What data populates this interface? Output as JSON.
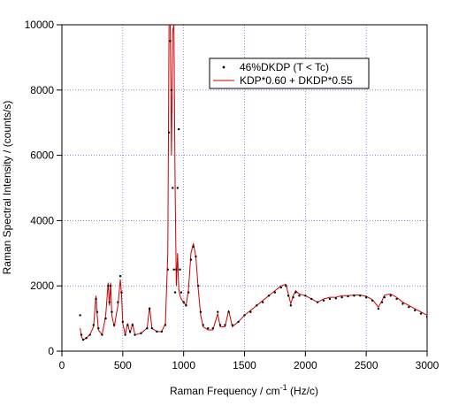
{
  "chart_data": {
    "type": "scatter",
    "x_label": {
      "text": "Raman Frequency / cm",
      "superscript": "-1",
      "suffix": " (Hz/c)"
    },
    "y_label": "Raman Spectral Intensity / (counts/s)",
    "xlim": [
      0,
      3000
    ],
    "ylim": [
      0,
      10000
    ],
    "xticks": [
      0,
      500,
      1000,
      1500,
      2000,
      2500,
      3000
    ],
    "yticks": [
      0,
      2000,
      4000,
      6000,
      8000,
      10000
    ],
    "grid": true,
    "legend": "upper right",
    "x": [
      150,
      160,
      175,
      200,
      230,
      260,
      280,
      290,
      300,
      330,
      360,
      380,
      390,
      400,
      410,
      430,
      460,
      480,
      490,
      500,
      520,
      540,
      560,
      580,
      600,
      650,
      700,
      720,
      740,
      780,
      820,
      850,
      870,
      880,
      890,
      900,
      910,
      920,
      930,
      940,
      950,
      960,
      970,
      980,
      1000,
      1020,
      1040,
      1060,
      1080,
      1100,
      1120,
      1140,
      1160,
      1200,
      1240,
      1280,
      1300,
      1340,
      1370,
      1400,
      1450,
      1500,
      1550,
      1600,
      1650,
      1700,
      1750,
      1800,
      1840,
      1860,
      1880,
      1900,
      1920,
      1950,
      2000,
      2050,
      2100,
      2150,
      2200,
      2250,
      2300,
      2350,
      2400,
      2450,
      2500,
      2550,
      2600,
      2630,
      2650,
      2700,
      2750,
      2800,
      2850,
      2900,
      2950,
      3000
    ],
    "series": [
      {
        "name": "46%DKDP  (T < Tc)",
        "mode": "markers",
        "color": "#000000",
        "values": [
          1100,
          500,
          350,
          400,
          500,
          800,
          1600,
          1200,
          700,
          500,
          1000,
          2000,
          1500,
          2000,
          1200,
          800,
          1500,
          2300,
          1800,
          900,
          500,
          800,
          600,
          800,
          500,
          550,
          700,
          1300,
          700,
          600,
          600,
          800,
          2500,
          6700,
          9500,
          8000,
          5000,
          2500,
          1800,
          2500,
          5000,
          6800,
          2500,
          1800,
          1500,
          1400,
          1800,
          2800,
          3200,
          2900,
          2000,
          1200,
          800,
          700,
          700,
          1200,
          800,
          800,
          1200,
          800,
          900,
          1100,
          1200,
          1400,
          1500,
          1700,
          1800,
          1950,
          2000,
          1700,
          1400,
          1650,
          1800,
          1700,
          1700,
          1600,
          1500,
          1550,
          1600,
          1620,
          1650,
          1680,
          1700,
          1700,
          1650,
          1550,
          1300,
          1500,
          1650,
          1700,
          1600,
          1450,
          1350,
          1250,
          1150,
          1050
        ]
      },
      {
        "name": "KDP*0.60 + DKDP*0.55",
        "mode": "line",
        "color": "#cc0000",
        "values": [
          700,
          450,
          350,
          400,
          500,
          750,
          1700,
          1100,
          650,
          500,
          1100,
          2100,
          1400,
          2100,
          1100,
          750,
          1400,
          2200,
          1700,
          850,
          500,
          850,
          550,
          850,
          500,
          550,
          700,
          1350,
          700,
          600,
          600,
          850,
          3000,
          10000,
          10000,
          6000,
          9800,
          10000,
          5000,
          2000,
          3000,
          1900,
          1700,
          1600,
          1500,
          1400,
          1900,
          3000,
          3300,
          2900,
          1900,
          1100,
          750,
          650,
          650,
          1150,
          750,
          750,
          1250,
          750,
          900,
          1100,
          1250,
          1400,
          1550,
          1700,
          1850,
          2000,
          2050,
          1750,
          1450,
          1700,
          1850,
          1750,
          1700,
          1600,
          1500,
          1600,
          1650,
          1650,
          1700,
          1700,
          1720,
          1720,
          1680,
          1580,
          1350,
          1550,
          1720,
          1750,
          1650,
          1500,
          1400,
          1300,
          1200,
          1100
        ]
      }
    ]
  }
}
